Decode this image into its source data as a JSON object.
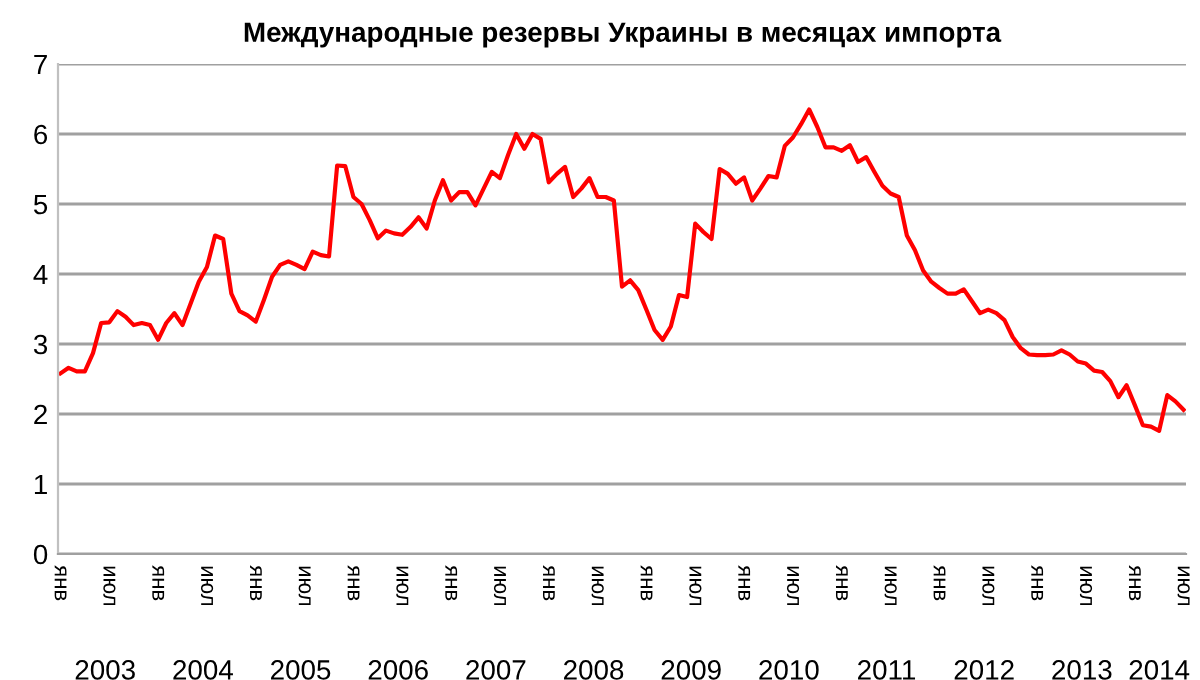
{
  "chart_data": {
    "type": "line",
    "title": "Международные резервы Украины в месяцах импорта",
    "categories": [
      "янв",
      null,
      null,
      null,
      null,
      null,
      "июл",
      null,
      null,
      null,
      null,
      null,
      "янв",
      null,
      null,
      null,
      null,
      null,
      "июл",
      null,
      null,
      null,
      null,
      null,
      "янв",
      null,
      null,
      null,
      null,
      null,
      "июл",
      null,
      null,
      null,
      null,
      null,
      "янв",
      null,
      null,
      null,
      null,
      null,
      "июл",
      null,
      null,
      null,
      null,
      null,
      "янв",
      null,
      null,
      null,
      null,
      null,
      "июл",
      null,
      null,
      null,
      null,
      null,
      "янв",
      null,
      null,
      null,
      null,
      null,
      "июл",
      null,
      null,
      null,
      null,
      null,
      "янв",
      null,
      null,
      null,
      null,
      null,
      "июл",
      null,
      null,
      null,
      null,
      null,
      "янв",
      null,
      null,
      null,
      null,
      null,
      "июл",
      null,
      null,
      null,
      null,
      null,
      "янв",
      null,
      null,
      null,
      null,
      null,
      "июл",
      null,
      null,
      null,
      null,
      null,
      "янв",
      null,
      null,
      null,
      null,
      null,
      "июл",
      null,
      null,
      null,
      null,
      null,
      "янв",
      null,
      null,
      null,
      null,
      null,
      "июл",
      null,
      null,
      null,
      null,
      null,
      "янв",
      null,
      null,
      null,
      null,
      null,
      "июл"
    ],
    "series": [
      {
        "color": "#ff0000",
        "values": [
          2.58,
          2.66,
          2.61,
          2.61,
          2.87,
          3.3,
          3.31,
          3.47,
          3.39,
          3.27,
          3.3,
          3.27,
          3.06,
          3.3,
          3.44,
          3.27,
          3.58,
          3.89,
          4.1,
          4.55,
          4.5,
          3.72,
          3.47,
          3.41,
          3.32,
          3.63,
          3.96,
          4.13,
          4.18,
          4.13,
          4.07,
          4.32,
          4.27,
          4.25,
          5.55,
          5.54,
          5.1,
          5.0,
          4.77,
          4.51,
          4.62,
          4.58,
          4.56,
          4.67,
          4.81,
          4.65,
          5.05,
          5.34,
          5.05,
          5.17,
          5.17,
          4.98,
          5.22,
          5.46,
          5.37,
          5.7,
          6.0,
          5.79,
          6.0,
          5.93,
          5.31,
          5.43,
          5.53,
          5.1,
          5.22,
          5.37,
          5.1,
          5.1,
          5.05,
          3.82,
          3.91,
          3.77,
          3.49,
          3.2,
          3.06,
          3.25,
          3.7,
          3.67,
          4.72,
          4.6,
          4.5,
          5.5,
          5.43,
          5.29,
          5.38,
          5.05,
          5.22,
          5.4,
          5.38,
          5.83,
          5.95,
          6.14,
          6.35,
          6.1,
          5.81,
          5.81,
          5.76,
          5.84,
          5.6,
          5.67,
          5.46,
          5.26,
          5.15,
          5.1,
          4.55,
          4.34,
          4.05,
          3.89,
          3.8,
          3.72,
          3.72,
          3.78,
          3.61,
          3.44,
          3.49,
          3.44,
          3.34,
          3.1,
          2.94,
          2.85,
          2.84,
          2.84,
          2.85,
          2.91,
          2.85,
          2.75,
          2.72,
          2.62,
          2.6,
          2.47,
          2.24,
          2.41,
          2.13,
          1.84,
          1.82,
          1.76,
          2.27,
          2.18,
          2.06
        ]
      }
    ],
    "ylim": [
      0,
      7
    ],
    "yticks": [
      0,
      1,
      2,
      3,
      4,
      5,
      6,
      7
    ],
    "grid": "y",
    "marker": "none",
    "line_style": "solid",
    "annotations": [
      "2003",
      "2004",
      "2005",
      "2006",
      "2007",
      "2008",
      "2009",
      "2010",
      "2011",
      "2012",
      "2013",
      "2014"
    ]
  }
}
